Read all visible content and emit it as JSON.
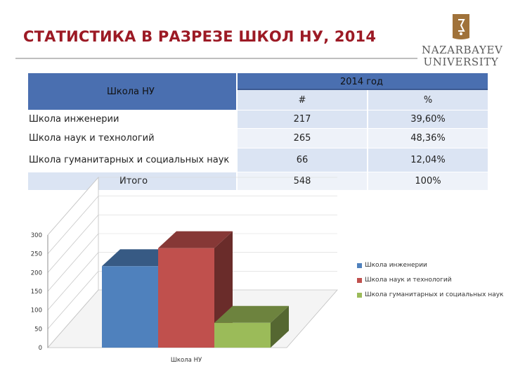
{
  "slide": {
    "title": "СТАТИСТИКА В РАЗРЕЗЕ ШКОЛ НУ, 2014",
    "logo": {
      "line1": "NAZARBAYEV",
      "line2": "UNIVERSITY"
    }
  },
  "table": {
    "col_school": "Школа НУ",
    "col_group": "2014 год",
    "col_count": "#",
    "col_percent": "%",
    "rows": [
      {
        "school": "Школа инженерии",
        "count": "217",
        "percent": "39,60%"
      },
      {
        "school": "Школа наук и технологий",
        "count": "265",
        "percent": "48,36%"
      },
      {
        "school": "Школа гуманитарных и социальных наук",
        "count": "66",
        "percent": "12,04%"
      }
    ],
    "total": {
      "label": "Итого",
      "count": "548",
      "percent": "100%"
    }
  },
  "chart_data": {
    "type": "bar",
    "categories": [
      "Школа НУ"
    ],
    "series": [
      {
        "name": "Школа инженерии",
        "values": [
          217
        ],
        "color": "#4f81bd"
      },
      {
        "name": "Школа наук и технологий",
        "values": [
          265
        ],
        "color": "#c0504d"
      },
      {
        "name": "Школа гуманитарных и социальных наук",
        "values": [
          66
        ],
        "color": "#9bbb59"
      }
    ],
    "ylim": [
      0,
      300
    ],
    "yticks": [
      "0",
      "50",
      "100",
      "150",
      "200",
      "250",
      "300"
    ],
    "legend": "right",
    "style": "3d-clustered"
  }
}
